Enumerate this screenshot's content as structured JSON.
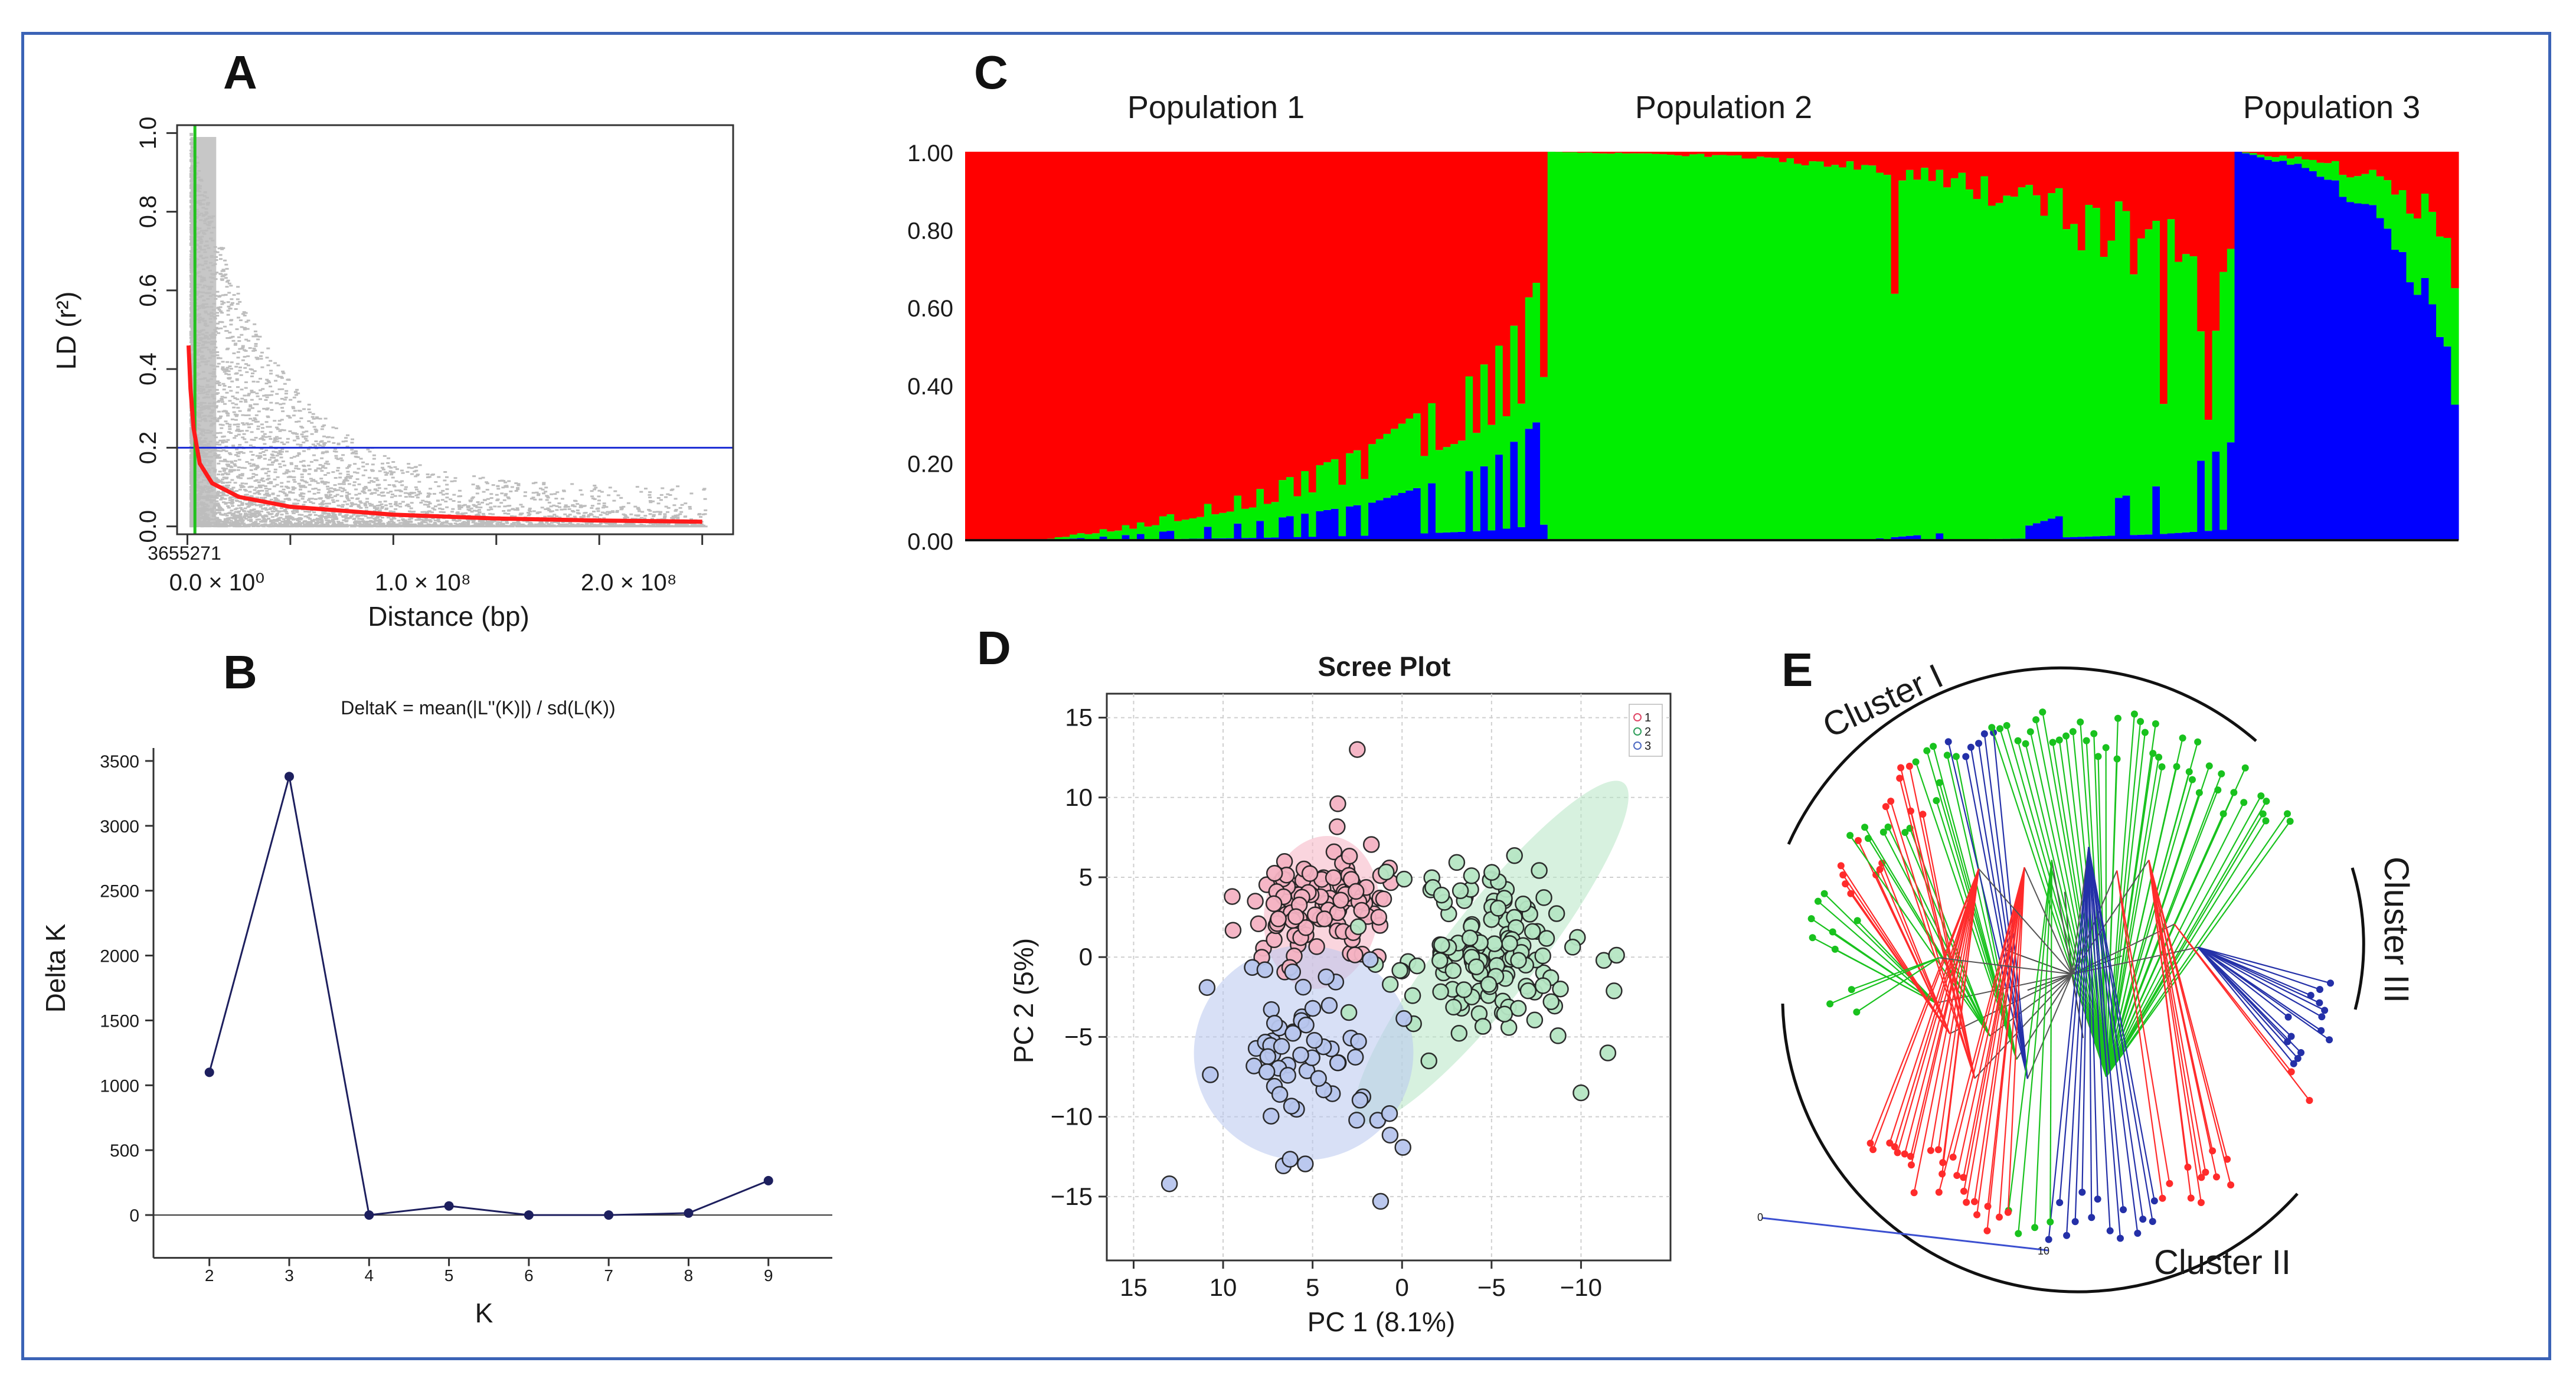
{
  "figure": {
    "frame_color": "#3b63b6"
  },
  "chart_data": [
    {
      "panel": "A",
      "type": "scatter",
      "xlabel": "Distance (bp)",
      "ylabel": "LD (r²)",
      "x_ticks": [
        "0.0 × 10⁰",
        "1.0 × 10⁸",
        "2.0 × 10⁸"
      ],
      "x_tick_values": [
        0,
        100000000,
        200000000
      ],
      "xlim": [
        -5000000,
        265000000
      ],
      "y_ticks": [
        "0.0",
        "0.2",
        "0.4",
        "0.6",
        "0.8",
        "1.0"
      ],
      "ylim": [
        -0.02,
        1.02
      ],
      "threshold_line": {
        "y": 0.2,
        "color": "#1a2bd4"
      },
      "decay_marker": {
        "x": 3655271,
        "label": "3655271",
        "color": "#22c21e"
      },
      "decay_curve": {
        "color": "#ff1a1a",
        "points": [
          [
            600000,
            0.46
          ],
          [
            1500000,
            0.35
          ],
          [
            3000000,
            0.25
          ],
          [
            6000000,
            0.16
          ],
          [
            12000000,
            0.11
          ],
          [
            25000000,
            0.075
          ],
          [
            50000000,
            0.05
          ],
          [
            100000000,
            0.03
          ],
          [
            150000000,
            0.02
          ],
          [
            200000000,
            0.015
          ],
          [
            250000000,
            0.012
          ]
        ]
      },
      "point_color": "#bdbdbd"
    },
    {
      "panel": "B",
      "type": "line",
      "title": "DeltaK = mean(|L''(K)|) / sd(L(K))",
      "xlabel": "K",
      "ylabel": "Delta K",
      "x": [
        2,
        3,
        4,
        5,
        6,
        7,
        8,
        9
      ],
      "values": [
        1100,
        3380,
        0,
        70,
        0,
        0,
        15,
        265
      ],
      "y_ticks": [
        0,
        500,
        1000,
        1500,
        2000,
        2500,
        3000,
        3500
      ],
      "ylim": [
        -350,
        3700
      ],
      "xlim": [
        1.3,
        9.8
      ],
      "color": "#1d1f5e"
    },
    {
      "panel": "C",
      "type": "area",
      "population_labels": [
        "Population 1",
        "Population 2",
        "Population 3"
      ],
      "y_ticks": [
        "0.00",
        "0.20",
        "0.40",
        "0.60",
        "0.80",
        "1.00"
      ],
      "n_individuals": 200,
      "series": [
        {
          "name": "Cluster red",
          "color": "#ff0000"
        },
        {
          "name": "Cluster green",
          "color": "#00ee00"
        },
        {
          "name": "Cluster blue",
          "color": "#0000ff"
        }
      ],
      "groups": [
        {
          "name": "Population 1",
          "count": 78,
          "green_profile": [
            [
              0,
              0
            ],
            [
              0.12,
              0.0
            ],
            [
              0.3,
              0.03
            ],
            [
              0.5,
              0.08
            ],
            [
              0.7,
              0.15
            ],
            [
              0.85,
              0.23
            ],
            [
              0.95,
              0.3
            ],
            [
              1,
              0.38
            ]
          ],
          "blue_profile": [
            [
              0,
              0
            ],
            [
              0.14,
              0.0
            ],
            [
              0.3,
              0.01
            ],
            [
              0.5,
              0.03
            ],
            [
              0.7,
              0.06
            ],
            [
              0.9,
              0.12
            ],
            [
              1,
              0.2
            ]
          ]
        },
        {
          "name": "Population 2",
          "count": 92,
          "red_profile": [
            [
              0,
              0
            ],
            [
              0.25,
              0.01
            ],
            [
              0.5,
              0.05
            ],
            [
              0.7,
              0.12
            ],
            [
              0.85,
              0.22
            ],
            [
              0.95,
              0.32
            ],
            [
              1,
              0.4
            ]
          ],
          "blue_profile": [
            [
              0,
              0
            ],
            [
              0.45,
              0.0
            ],
            [
              0.7,
              0.02
            ],
            [
              0.9,
              0.08
            ],
            [
              1,
              0.14
            ]
          ]
        },
        {
          "name": "Population 3",
          "count": 30,
          "green_profile": [
            [
              0,
              0
            ],
            [
              0.3,
              0.02
            ],
            [
              0.6,
              0.08
            ],
            [
              0.8,
              0.18
            ],
            [
              1,
              0.3
            ]
          ],
          "red_profile": [
            [
              0,
              0
            ],
            [
              0.3,
              0.02
            ],
            [
              0.6,
              0.06
            ],
            [
              0.8,
              0.12
            ],
            [
              1,
              0.27
            ]
          ]
        }
      ]
    },
    {
      "panel": "D",
      "type": "scatter",
      "title": "Scree Plot",
      "xlabel": "PC 1 (8.1%)",
      "ylabel": "PC 2 (5%)",
      "x_ticks": [
        15,
        10,
        5,
        0,
        -5,
        -10
      ],
      "xlim": [
        16.5,
        -15
      ],
      "x_reversed": true,
      "y_ticks": [
        -15,
        -10,
        -5,
        0,
        5,
        10,
        15
      ],
      "ylim": [
        -19,
        16.5
      ],
      "legend": [
        "1",
        "2",
        "3"
      ],
      "legend_position": "top-right",
      "groups": [
        {
          "name": "1",
          "color": "#e04565",
          "fill": "#f5b3c3",
          "center": [
            4.5,
            3
          ],
          "spread": [
            2.2,
            2.0
          ],
          "n": 110,
          "outliers": [
            [
              2.5,
              13
            ],
            [
              8.2,
              3.5
            ],
            [
              1.3,
              2.5
            ]
          ],
          "ellipse": {
            "cx": 4.5,
            "cy": 2.8,
            "rx": 4.3,
            "ry": 6.5,
            "angle": 10
          }
        },
        {
          "name": "2",
          "color": "#2f9e5a",
          "fill": "#b6e6c4",
          "center": [
            -5,
            0.5
          ],
          "spread": [
            2.5,
            2.3
          ],
          "n": 140,
          "outliers": [
            [
              -11.5,
              -6
            ],
            [
              -10,
              -8.5
            ],
            [
              -1.5,
              -6.5
            ]
          ],
          "ellipse": {
            "cx": -5,
            "cy": 0.3,
            "rx": 12,
            "ry": 5.2,
            "angle": -18
          }
        },
        {
          "name": "3",
          "color": "#4d69c2",
          "fill": "#b8c6ee",
          "center": [
            5.5,
            -6
          ],
          "spread": [
            2.3,
            3.0
          ],
          "n": 60,
          "outliers": [
            [
              13,
              -14.2
            ],
            [
              1.2,
              -15.3
            ],
            [
              0.7,
              -9.8
            ]
          ],
          "ellipse": {
            "cx": 5.5,
            "cy": -6,
            "rx": 6.0,
            "ry": 12.5,
            "angle": 25
          }
        }
      ]
    },
    {
      "panel": "E",
      "type": "tree",
      "cluster_labels": [
        "Cluster I",
        "Cluster II",
        "Cluster III"
      ],
      "scale_bar": {
        "start": "0",
        "end": "10"
      },
      "colors": {
        "red": "#ff2b2b",
        "green": "#19c21e",
        "blue": "#2430a8"
      },
      "sectors": [
        {
          "from": 186,
          "to": 198,
          "color": "green",
          "n": 7
        },
        {
          "from": 200,
          "to": 212,
          "color": "red",
          "n": 8
        },
        {
          "from": 212,
          "to": 222,
          "color": "green",
          "n": 7
        },
        {
          "from": 222,
          "to": 232,
          "color": "red",
          "n": 7
        },
        {
          "from": 232,
          "to": 242,
          "color": "green",
          "n": 7
        },
        {
          "from": 242,
          "to": 252,
          "color": "blue",
          "n": 6
        },
        {
          "from": 252,
          "to": 325,
          "color": "green",
          "n": 45
        },
        {
          "from": 2,
          "to": 22,
          "color": "blue",
          "n": 14
        },
        {
          "from": 24,
          "to": 28,
          "color": "red",
          "n": 2
        },
        {
          "from": 50,
          "to": 62,
          "color": "red",
          "n": 9
        },
        {
          "from": 65,
          "to": 68,
          "color": "red",
          "n": 2
        },
        {
          "from": 70,
          "to": 95,
          "color": "blue",
          "n": 14
        },
        {
          "from": 95,
          "to": 105,
          "color": "green",
          "n": 4
        },
        {
          "from": 105,
          "to": 123,
          "color": "red",
          "n": 12
        },
        {
          "from": 123,
          "to": 140,
          "color": "red",
          "n": 13
        },
        {
          "from": 170,
          "to": 176,
          "color": "green",
          "n": 3
        }
      ]
    }
  ]
}
